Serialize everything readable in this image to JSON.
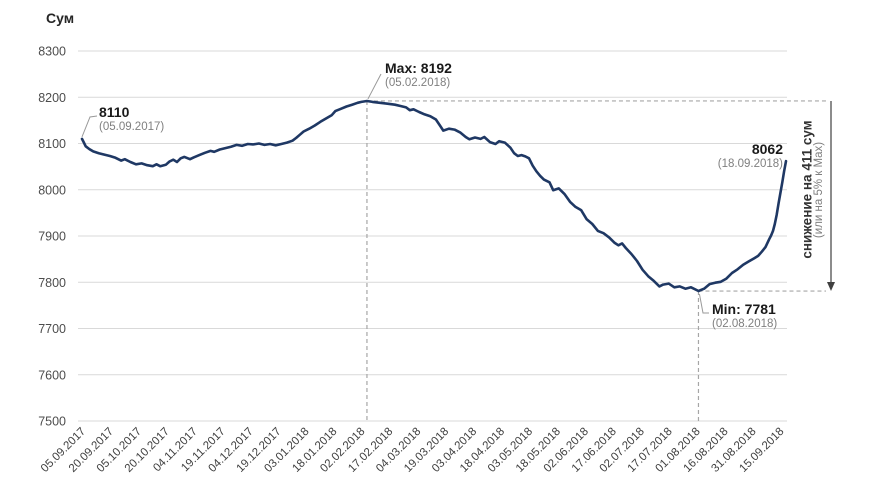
{
  "title": "Сум",
  "colors": {
    "line": "#1f3864",
    "grid": "#d9d9d9",
    "dash": "#a6a6a6",
    "axis_text": "#404040",
    "tick_text": "#4d4d4d",
    "leader": "#999999",
    "arrow": "#404040"
  },
  "annotations": {
    "start": {
      "value": "8110",
      "date": "(05.09.2017)"
    },
    "max": {
      "value": "Max: 8192",
      "date": "(05.02.2018)"
    },
    "min": {
      "value": "Min: 7781",
      "date": "(02.08.2018)"
    },
    "end": {
      "value": "8062",
      "date": "(18.09.2018)"
    },
    "side_note": {
      "line1": "снижение на 411 сум",
      "line2": "(или на 5% к Max)"
    }
  },
  "chart_data": {
    "type": "line",
    "title": "Сум",
    "ylabel": "Сум",
    "xlabel": "",
    "ylim": [
      7500,
      8300
    ],
    "grid": "horizontal",
    "legend": "none",
    "y_ticks": [
      8300,
      8200,
      8100,
      8000,
      7900,
      7800,
      7700,
      7600,
      7500
    ],
    "x_tick_interval_days": 15,
    "x_tick_labels": [
      "05.09.2017",
      "20.09.2017",
      "05.10.2017",
      "20.10.2017",
      "04.11.2017",
      "19.11.2017",
      "04.12.2017",
      "19.12.2017",
      "03.01.2018",
      "18.01.2018",
      "02.02.2018",
      "17.02.2018",
      "04.03.2018",
      "19.03.2018",
      "03.04.2018",
      "18.04.2018",
      "03.05.2018",
      "18.05.2018",
      "02.06.2018",
      "17.06.2018",
      "02.07.2018",
      "17.07.2018",
      "01.08.2018",
      "16.08.2018",
      "31.08.2018",
      "15.09.2018"
    ],
    "key_points": {
      "start": {
        "day": 0,
        "value": 8110,
        "date": "05.09.2017"
      },
      "max": {
        "day": 153,
        "value": 8192,
        "date": "05.02.2018"
      },
      "min": {
        "day": 331,
        "value": 7781,
        "date": "02.08.2018"
      },
      "end": {
        "day": 378,
        "value": 8062,
        "date": "18.09.2018"
      }
    },
    "decline": {
      "amount_sum": 411,
      "percent_of_max": 5
    },
    "points": [
      [
        0,
        8110
      ],
      [
        1,
        8102
      ],
      [
        2,
        8094
      ],
      [
        4,
        8088
      ],
      [
        6,
        8083
      ],
      [
        9,
        8079
      ],
      [
        12,
        8076
      ],
      [
        15,
        8073
      ],
      [
        18,
        8069
      ],
      [
        21,
        8063
      ],
      [
        23,
        8066
      ],
      [
        26,
        8060
      ],
      [
        29,
        8055
      ],
      [
        32,
        8057
      ],
      [
        35,
        8053
      ],
      [
        38,
        8051
      ],
      [
        40,
        8055
      ],
      [
        42,
        8051
      ],
      [
        45,
        8054
      ],
      [
        47,
        8061
      ],
      [
        49,
        8065
      ],
      [
        51,
        8060
      ],
      [
        53,
        8068
      ],
      [
        55,
        8071
      ],
      [
        58,
        8066
      ],
      [
        60,
        8070
      ],
      [
        63,
        8075
      ],
      [
        66,
        8080
      ],
      [
        69,
        8084
      ],
      [
        71,
        8082
      ],
      [
        74,
        8087
      ],
      [
        77,
        8090
      ],
      [
        80,
        8093
      ],
      [
        83,
        8097
      ],
      [
        86,
        8095
      ],
      [
        89,
        8099
      ],
      [
        92,
        8098
      ],
      [
        95,
        8100
      ],
      [
        98,
        8097
      ],
      [
        101,
        8099
      ],
      [
        104,
        8096
      ],
      [
        107,
        8099
      ],
      [
        110,
        8102
      ],
      [
        113,
        8106
      ],
      [
        115,
        8112
      ],
      [
        117,
        8119
      ],
      [
        119,
        8126
      ],
      [
        122,
        8132
      ],
      [
        125,
        8139
      ],
      [
        128,
        8147
      ],
      [
        131,
        8154
      ],
      [
        134,
        8161
      ],
      [
        136,
        8170
      ],
      [
        139,
        8175
      ],
      [
        142,
        8180
      ],
      [
        145,
        8184
      ],
      [
        148,
        8188
      ],
      [
        150,
        8190
      ],
      [
        153,
        8192
      ],
      [
        156,
        8190
      ],
      [
        160,
        8188
      ],
      [
        164,
        8186
      ],
      [
        168,
        8184
      ],
      [
        171,
        8181
      ],
      [
        174,
        8178
      ],
      [
        176,
        8172
      ],
      [
        178,
        8174
      ],
      [
        181,
        8168
      ],
      [
        184,
        8163
      ],
      [
        187,
        8159
      ],
      [
        190,
        8152
      ],
      [
        192,
        8140
      ],
      [
        194,
        8128
      ],
      [
        197,
        8132
      ],
      [
        200,
        8130
      ],
      [
        203,
        8124
      ],
      [
        206,
        8114
      ],
      [
        208,
        8109
      ],
      [
        211,
        8113
      ],
      [
        214,
        8110
      ],
      [
        216,
        8114
      ],
      [
        219,
        8103
      ],
      [
        222,
        8099
      ],
      [
        224,
        8105
      ],
      [
        227,
        8102
      ],
      [
        230,
        8091
      ],
      [
        232,
        8079
      ],
      [
        234,
        8073
      ],
      [
        236,
        8075
      ],
      [
        238,
        8072
      ],
      [
        240,
        8068
      ],
      [
        242,
        8052
      ],
      [
        244,
        8040
      ],
      [
        246,
        8030
      ],
      [
        248,
        8022
      ],
      [
        251,
        8016
      ],
      [
        253,
        7999
      ],
      [
        256,
        8003
      ],
      [
        259,
        7991
      ],
      [
        262,
        7974
      ],
      [
        265,
        7963
      ],
      [
        268,
        7956
      ],
      [
        271,
        7936
      ],
      [
        274,
        7926
      ],
      [
        277,
        7911
      ],
      [
        280,
        7906
      ],
      [
        283,
        7897
      ],
      [
        286,
        7885
      ],
      [
        288,
        7880
      ],
      [
        290,
        7884
      ],
      [
        292,
        7874
      ],
      [
        295,
        7861
      ],
      [
        298,
        7846
      ],
      [
        301,
        7827
      ],
      [
        304,
        7813
      ],
      [
        307,
        7803
      ],
      [
        310,
        7791
      ],
      [
        312,
        7795
      ],
      [
        315,
        7797
      ],
      [
        318,
        7789
      ],
      [
        321,
        7791
      ],
      [
        324,
        7786
      ],
      [
        327,
        7789
      ],
      [
        331,
        7781
      ],
      [
        334,
        7786
      ],
      [
        337,
        7796
      ],
      [
        340,
        7799
      ],
      [
        343,
        7801
      ],
      [
        346,
        7808
      ],
      [
        349,
        7820
      ],
      [
        352,
        7828
      ],
      [
        355,
        7838
      ],
      [
        358,
        7845
      ],
      [
        361,
        7852
      ],
      [
        363,
        7857
      ],
      [
        365,
        7866
      ],
      [
        367,
        7876
      ],
      [
        369,
        7893
      ],
      [
        370,
        7901
      ],
      [
        371,
        7911
      ],
      [
        372,
        7926
      ],
      [
        373,
        7946
      ],
      [
        374,
        7971
      ],
      [
        375,
        7993
      ],
      [
        376,
        8016
      ],
      [
        377,
        8040
      ],
      [
        378,
        8062
      ]
    ]
  }
}
